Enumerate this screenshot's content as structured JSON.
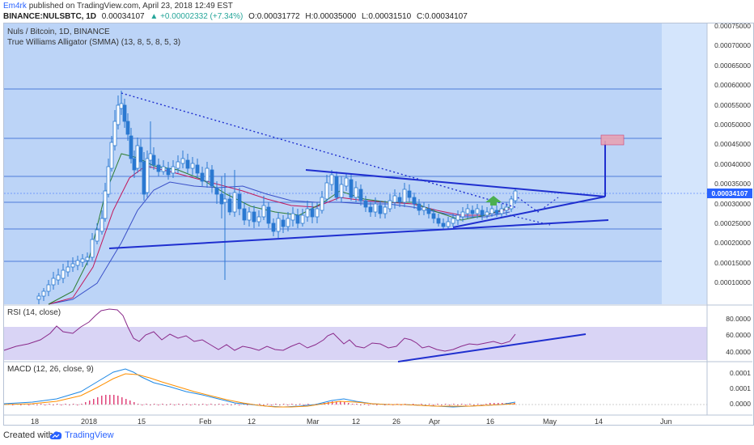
{
  "header": {
    "username": "Em4rk",
    "published_text": "published on TradingView.com, April 23, 2018 12:49 EST",
    "symbol_line": "BINANCE:NULSBTC, 1D",
    "last": "0.00034107",
    "change": "▲ +0.00002332 (+7.34%)",
    "o_label": "O:",
    "o_value": "0.00031772",
    "h_label": "H:",
    "h_value": "0.00035000",
    "l_label": "L:",
    "l_value": "0.00031510",
    "c_label": "C:",
    "c_value": "0.00034107"
  },
  "main_pane": {
    "title": "Nuls / Bitcoin, 1D, BINANCE",
    "indicator": "True Williams Alligator (SMMA) (13, 8, 5, 8, 5, 3)",
    "price_axis": [
      "0.00075000",
      "0.00070000",
      "0.00065000",
      "0.00060000",
      "0.00055000",
      "0.00050000",
      "0.00045000",
      "0.00040000",
      "0.00035000",
      "0.00030000",
      "0.00025000",
      "0.00020000",
      "0.00015000",
      "0.00010000"
    ],
    "current_price": "0.00034107"
  },
  "rsi_pane": {
    "title": "RSI (14, close)",
    "axis": [
      "80.0000",
      "60.0000",
      "40.0000"
    ]
  },
  "macd_pane": {
    "title": "MACD (12, 26, close, 9)",
    "axis": [
      "0.0001",
      "0.0001",
      "0.0000"
    ]
  },
  "time_axis": [
    "18",
    "2018",
    "15",
    "Feb",
    "12",
    "Mar",
    "12",
    "26",
    "Apr",
    "16",
    "May",
    "14",
    "Jun"
  ],
  "footer": {
    "created_with": "Created with",
    "brand": "TradingView"
  },
  "colors": {
    "chart_bg": "#bcd4f7",
    "future_bg": "#d4e5fc",
    "candle": "#2a79d1",
    "trendline": "#1f2fcf",
    "rsi_line": "#8a2a8a",
    "macd_line": "#1e88e5",
    "signal_line": "#ff8f00",
    "hist": "#e0457b",
    "target_box": "#e8a3b4"
  }
}
